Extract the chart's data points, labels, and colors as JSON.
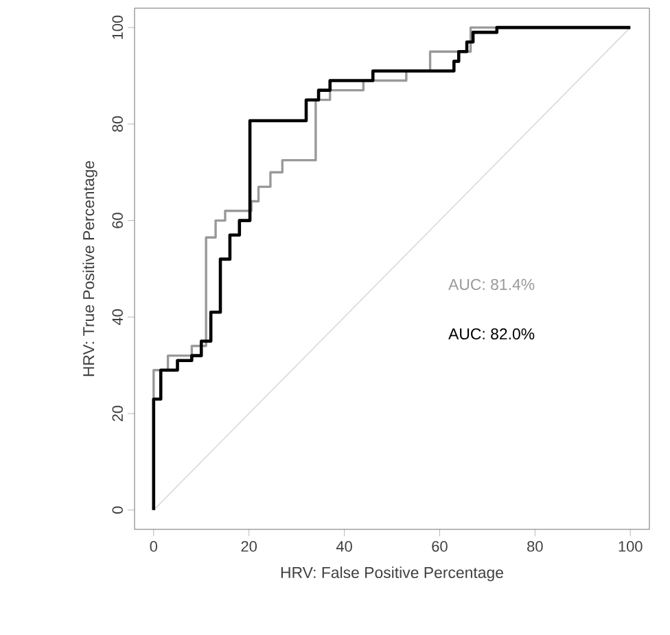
{
  "chart_data": {
    "type": "line",
    "xlabel": "HRV: False Positive Percentage",
    "ylabel": "HRV: True Positive Percentage",
    "xlim": [
      -4,
      104
    ],
    "ylim": [
      -4,
      104
    ],
    "xticks": [
      0,
      20,
      40,
      60,
      80,
      100
    ],
    "yticks": [
      0,
      20,
      40,
      60,
      80,
      100
    ],
    "grid": false,
    "marker": "none",
    "annotations": [
      "AUC: 81.4%",
      "AUC: 82.0%"
    ],
    "series": [
      {
        "color": "#d9d9d9",
        "x": [
          0,
          100
        ],
        "values": [
          0,
          100
        ]
      },
      {
        "color": "#999999",
        "x": [
          0,
          0,
          3,
          3,
          8,
          8,
          11,
          11,
          13,
          13,
          15,
          15,
          20.5,
          20.5,
          22,
          22,
          24.5,
          24.5,
          27,
          27,
          34,
          34,
          37,
          37,
          44,
          44,
          53,
          53,
          58,
          58,
          66.5,
          66.5,
          100
        ],
        "values": [
          0,
          29,
          29,
          32,
          32,
          34,
          34,
          56.5,
          56.5,
          60,
          60,
          62,
          62,
          64,
          64,
          67,
          67,
          70,
          70,
          72.5,
          72.5,
          85,
          85,
          87,
          87,
          89,
          89,
          91,
          91,
          95,
          95,
          100,
          100
        ]
      },
      {
        "color": "#000000",
        "x": [
          0,
          0,
          1.5,
          1.5,
          5,
          5,
          8,
          8,
          10,
          10,
          12,
          12,
          14,
          14,
          16,
          16,
          18,
          18,
          20.2,
          20.2,
          32,
          32,
          34.6,
          34.6,
          37,
          37,
          46,
          46,
          63,
          63,
          64,
          64,
          65.7,
          65.7,
          67,
          67,
          72,
          72,
          100
        ],
        "values": [
          0,
          23,
          23,
          29,
          29,
          31,
          31,
          32,
          32,
          35,
          35,
          41,
          41,
          52,
          52,
          57,
          57,
          60,
          60,
          80.7,
          80.7,
          85,
          85,
          87,
          87,
          89,
          89,
          91,
          91,
          93,
          93,
          95,
          95,
          97,
          97,
          99,
          99,
          100,
          100
        ]
      }
    ]
  }
}
